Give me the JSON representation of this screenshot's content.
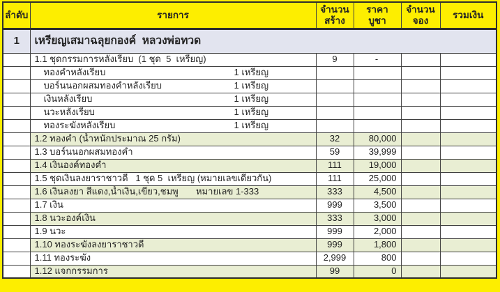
{
  "colors": {
    "header_bg": "#fdee00",
    "frame": "#fdee00",
    "stripe": "#e9eed3",
    "section_bg": "#e2e4ef",
    "grid": "#3f3f3f",
    "text": "#242424"
  },
  "table": {
    "columns": [
      {
        "key": "order",
        "line1": "ลำดับ",
        "line2": ""
      },
      {
        "key": "item",
        "line1": "รายการ",
        "line2": ""
      },
      {
        "key": "made",
        "line1": "จำนวน",
        "line2": "สร้าง"
      },
      {
        "key": "price",
        "line1": "ราคา",
        "line2": "บูชา"
      },
      {
        "key": "reserved",
        "line1": "จำนวน",
        "line2": "จอง"
      },
      {
        "key": "total",
        "line1": "รวมเงิน",
        "line2": ""
      }
    ],
    "rows": [
      {
        "type": "section",
        "no": "1",
        "name": "เหรียญเสมาฉลุยกองค์  หลวงพ่อทวด"
      },
      {
        "type": "item",
        "name": "1.1 ชุดกรรมการหลังเรียบ  (1 ชุด  5  เหรียญ)",
        "made": "9",
        "price": "-",
        "reserved": "",
        "total": "",
        "shade": false
      },
      {
        "type": "sub",
        "name": "ทองคำหลังเรียบ",
        "qty": "1 เหรียญ",
        "made": "",
        "price": "",
        "reserved": "",
        "total": "",
        "shade": false
      },
      {
        "type": "sub",
        "name": "บอร์นนอกผสมทองคำหลังเรียบ",
        "qty": "1 เหรียญ",
        "made": "",
        "price": "",
        "reserved": "",
        "total": "",
        "shade": false
      },
      {
        "type": "sub",
        "name": "เงินหลังเรียบ",
        "qty": "1 เหรียญ",
        "made": "",
        "price": "",
        "reserved": "",
        "total": "",
        "shade": false
      },
      {
        "type": "sub",
        "name": "นวะหลังเรียบ",
        "qty": "1 เหรียญ",
        "made": "",
        "price": "",
        "reserved": "",
        "total": "",
        "shade": false
      },
      {
        "type": "sub",
        "name": "ทองระฆังหลังเรียบ",
        "qty": "1 เหรียญ",
        "made": "",
        "price": "",
        "reserved": "",
        "total": "",
        "shade": false
      },
      {
        "type": "item",
        "name": "1.2 ทองคำ (น้ำหนักประมาณ 25 กรัม)",
        "made": "32",
        "price": "80,000",
        "reserved": "",
        "total": "",
        "shade": true
      },
      {
        "type": "item",
        "name": "1.3 บอร์นนอกผสมทองคำ",
        "made": "59",
        "price": "39,999",
        "reserved": "",
        "total": "",
        "shade": false
      },
      {
        "type": "item",
        "name": "1.4 เงินองค์ทองคำ",
        "made": "111",
        "price": "19,000",
        "reserved": "",
        "total": "",
        "shade": true
      },
      {
        "type": "item",
        "name": "1.5 ชุดเงินลงยาราชาวดี   1 ชุด 5  เหรียญ (หมายเลขเดียวกัน)",
        "made": "111",
        "price": "25,000",
        "reserved": "",
        "total": "",
        "shade": false
      },
      {
        "type": "item",
        "name": "1.6 เงินลงยา สีแดง,น้ำเงิน,เขียว,ชมพู       หมายเลข 1-333",
        "made": "333",
        "price": "4,500",
        "reserved": "",
        "total": "",
        "shade": true
      },
      {
        "type": "item",
        "name": "1.7 เงิน",
        "made": "999",
        "price": "3,500",
        "reserved": "",
        "total": "",
        "shade": false
      },
      {
        "type": "item",
        "name": "1.8 นวะองค์เงิน",
        "made": "333",
        "price": "3,000",
        "reserved": "",
        "total": "",
        "shade": true
      },
      {
        "type": "item",
        "name": "1.9 นวะ",
        "made": "999",
        "price": "2,000",
        "reserved": "",
        "total": "",
        "shade": false
      },
      {
        "type": "item",
        "name": "1.10 ทองระฆังลงยาราชาวดี",
        "made": "999",
        "price": "1,800",
        "reserved": "",
        "total": "",
        "shade": true
      },
      {
        "type": "item",
        "name": "1.11 ทองระฆัง",
        "made": "2,999",
        "price": "800",
        "reserved": "",
        "total": "",
        "shade": false
      },
      {
        "type": "item",
        "name": "1.12 แจกกรรมการ",
        "made": "99",
        "price": "0",
        "reserved": "",
        "total": "",
        "shade": true
      }
    ]
  }
}
